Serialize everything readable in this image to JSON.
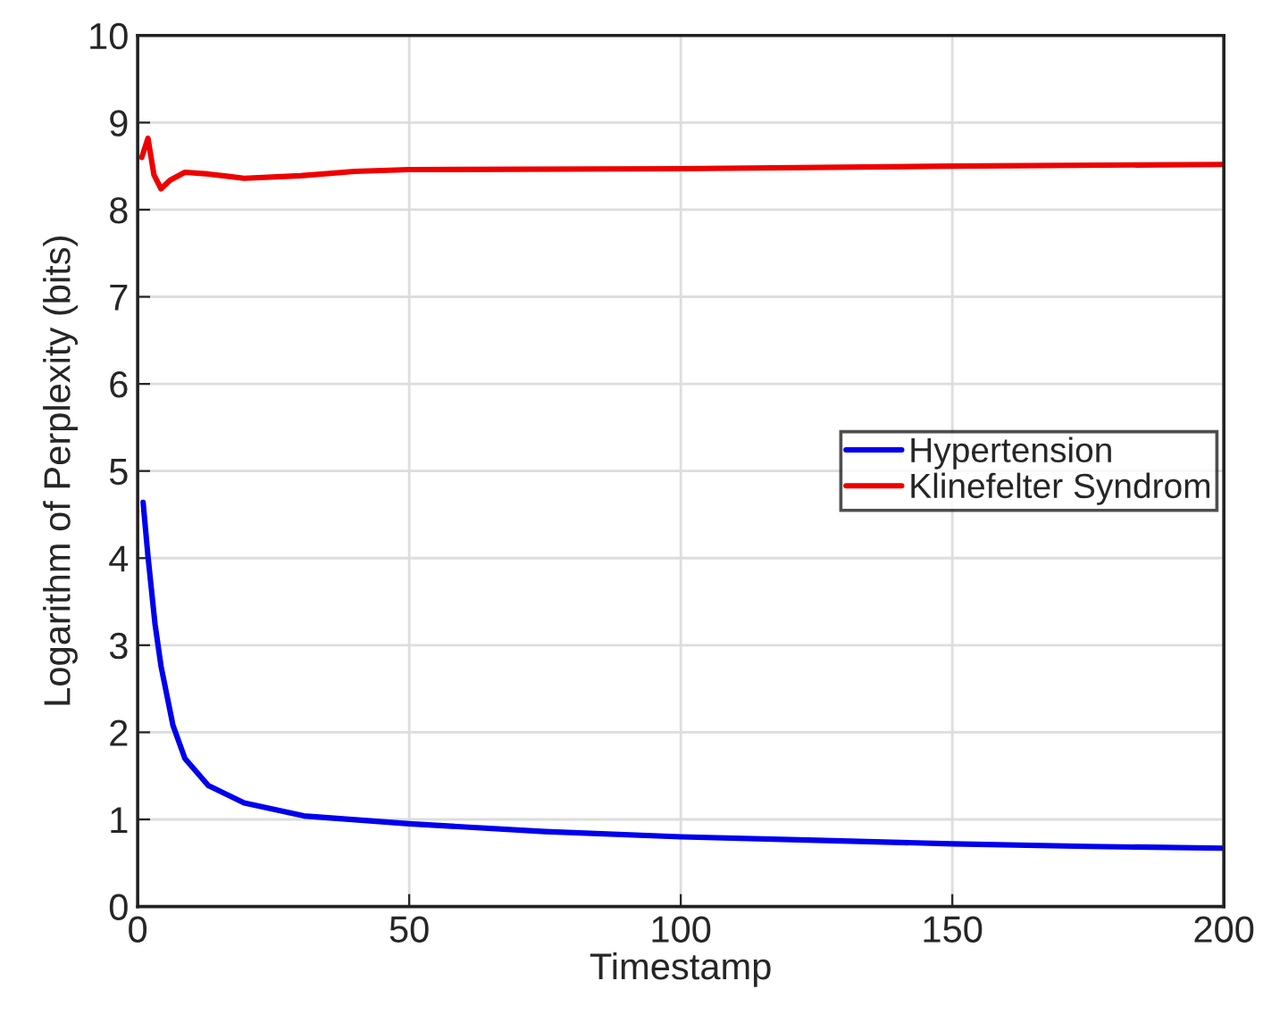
{
  "chart_data": {
    "type": "line",
    "xlabel": "Timestamp",
    "ylabel": "Logarithm of Perplexity (bits)",
    "xlim": [
      0,
      200
    ],
    "xticks": [
      0,
      50,
      100,
      150,
      200
    ],
    "ylim": [
      0,
      10
    ],
    "yticks": [
      0,
      1,
      2,
      3,
      4,
      5,
      6,
      7,
      8,
      9,
      10
    ],
    "grid": true,
    "legend": "right",
    "marker": "none",
    "line_style": "solid",
    "series": [
      {
        "name": "Hypertension",
        "color": "#0000ee",
        "x": [
          1,
          1.9,
          3.2,
          4.3,
          6.5,
          8.7,
          13,
          19.6,
          30.6,
          50,
          75,
          100,
          125,
          150,
          175,
          200
        ],
        "values": [
          4.64,
          4.02,
          3.24,
          2.76,
          2.08,
          1.7,
          1.39,
          1.19,
          1.04,
          0.95,
          0.86,
          0.8,
          0.76,
          0.72,
          0.69,
          0.67
        ]
      },
      {
        "name": "Klinefelter Syndrom",
        "color": "#ee0000",
        "x": [
          0.75,
          1.9,
          3,
          4.3,
          6,
          8.7,
          13,
          19.6,
          30,
          40,
          50,
          100,
          150,
          200
        ],
        "values": [
          8.6,
          8.82,
          8.4,
          8.24,
          8.34,
          8.43,
          8.41,
          8.36,
          8.39,
          8.44,
          8.46,
          8.47,
          8.5,
          8.52
        ]
      }
    ]
  }
}
